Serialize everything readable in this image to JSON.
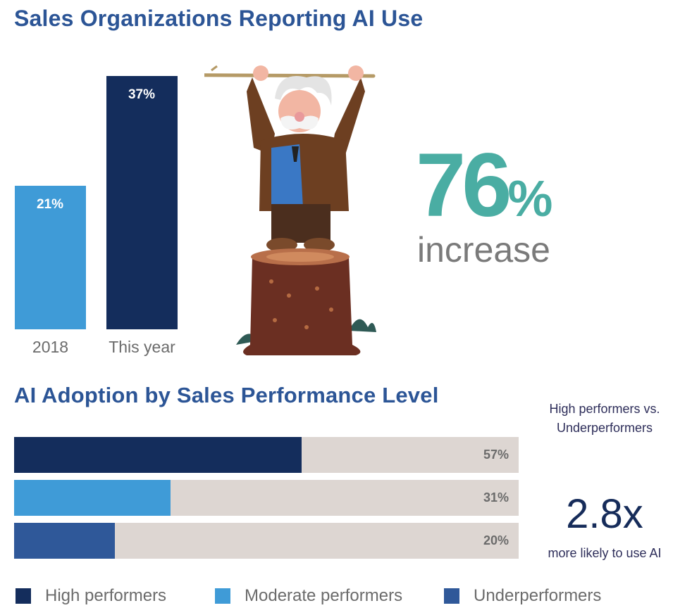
{
  "titles": {
    "top": "Sales Organizations Reporting AI Use",
    "bottom": "AI Adoption by Sales Performance Level"
  },
  "colors": {
    "dark_navy": "#142d5c",
    "light_blue": "#3f9bd7",
    "mid_blue": "#2f5899",
    "teal": "#4aada3",
    "track": "#ddd6d2"
  },
  "callout": {
    "value": "76",
    "sign": "%",
    "word": "increase"
  },
  "comparison": {
    "heading": "High performers vs. Underperformers",
    "multiplier": "2.8x",
    "subtext": "more likely to use AI"
  },
  "icons": {
    "illustration": "old-man-on-tree-stump-icon"
  },
  "chart_data": [
    {
      "type": "bar",
      "orientation": "vertical",
      "title": "Sales Organizations Reporting AI Use",
      "categories": [
        "2018",
        "This year"
      ],
      "values": [
        21,
        37
      ],
      "value_labels": [
        "21%",
        "37%"
      ],
      "unit": "%",
      "colors": [
        "#3f9bd7",
        "#142d5c"
      ],
      "ylim": [
        0,
        37
      ],
      "grid": false
    },
    {
      "type": "bar",
      "orientation": "horizontal",
      "title": "AI Adoption by Sales Performance Level",
      "categories": [
        "High performers",
        "Moderate performers",
        "Underperformers"
      ],
      "values": [
        57,
        31,
        20
      ],
      "value_labels": [
        "57%",
        "31%",
        "20%"
      ],
      "unit": "%",
      "colors": [
        "#142d5c",
        "#3f9bd7",
        "#2f5899"
      ],
      "xlim": [
        0,
        100
      ],
      "legend": "bottom",
      "grid": false
    }
  ]
}
